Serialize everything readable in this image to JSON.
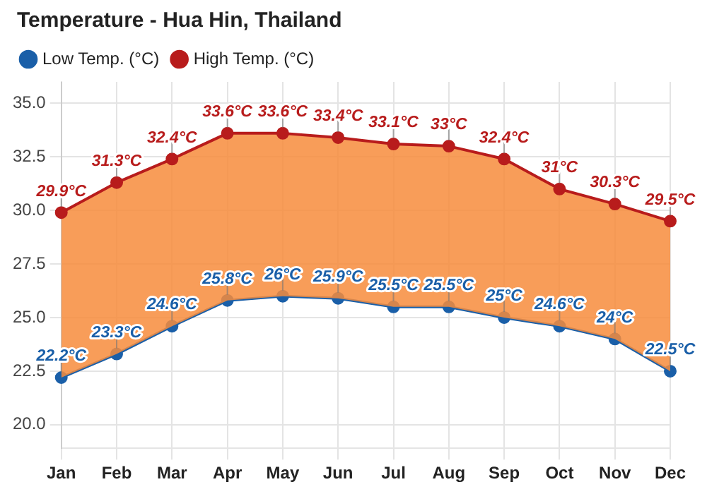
{
  "chart_data": {
    "type": "line",
    "title": "Temperature - Hua Hin, Thailand",
    "categories": [
      "Jan",
      "Feb",
      "Mar",
      "Apr",
      "May",
      "Jun",
      "Jul",
      "Aug",
      "Sep",
      "Oct",
      "Nov",
      "Dec"
    ],
    "series": [
      {
        "name": "Low Temp. (°C)",
        "color": "#1a5fa8",
        "values": [
          22.2,
          23.3,
          24.6,
          25.8,
          26,
          25.9,
          25.5,
          25.5,
          25,
          24.6,
          24,
          22.5
        ],
        "value_labels": [
          "22.2°C",
          "23.3°C",
          "24.6°C",
          "25.8°C",
          "26°C",
          "25.9°C",
          "25.5°C",
          "25.5°C",
          "25°C",
          "24.6°C",
          "24°C",
          "22.5°C"
        ]
      },
      {
        "name": "High Temp. (°C)",
        "type": "area",
        "color": "#b81c1c",
        "values": [
          29.9,
          31.3,
          32.4,
          33.6,
          33.6,
          33.4,
          33.1,
          33,
          32.4,
          31,
          30.3,
          29.5
        ],
        "value_labels": [
          "29.9°C",
          "31.3°C",
          "32.4°C",
          "33.6°C",
          "33.6°C",
          "33.4°C",
          "33.1°C",
          "33°C",
          "32.4°C",
          "31°C",
          "30.3°C",
          "29.5°C"
        ]
      }
    ],
    "ylim": [
      18.9,
      36
    ],
    "yticks": [
      {
        "value": 20,
        "label": "20.0"
      },
      {
        "value": 22.5,
        "label": "22.5"
      },
      {
        "value": 25,
        "label": "25.0"
      },
      {
        "value": 27.5,
        "label": "27.5"
      },
      {
        "value": 30,
        "label": "30.0"
      },
      {
        "value": 32.5,
        "label": "32.5"
      },
      {
        "value": 35,
        "label": "35.0"
      }
    ],
    "grid": true,
    "legend": "top left",
    "marker": "circle",
    "line_style": "solid"
  }
}
